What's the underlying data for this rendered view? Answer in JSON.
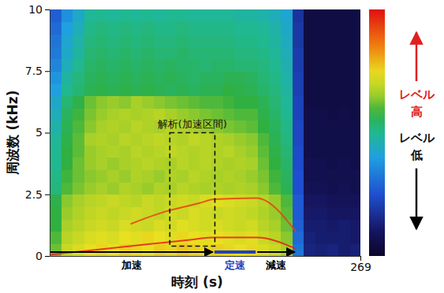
{
  "chart_data": {
    "type": "heatmap",
    "xlabel": "時刻 (s)",
    "ylabel": "周波数 (kHz)",
    "xlim": [
      0,
      269
    ],
    "ylim": [
      0,
      10
    ],
    "xticks": [
      269
    ],
    "yticks": [
      0,
      2.5,
      5,
      7.5,
      10
    ],
    "x_bins": [
      0,
      10,
      20,
      30,
      40,
      50,
      60,
      70,
      80,
      90,
      100,
      110,
      120,
      130,
      140,
      150,
      160,
      170,
      180,
      190,
      200,
      210,
      220,
      230,
      240,
      250,
      260,
      269
    ],
    "y_bins": [
      0,
      0.5,
      1,
      1.5,
      2,
      2.5,
      3,
      3.5,
      4,
      4.5,
      5,
      5.5,
      6,
      6.5,
      7,
      7.5,
      8,
      8.5,
      9,
      9.5,
      10
    ],
    "z": [
      [
        62,
        70,
        72,
        74,
        75,
        74,
        76,
        75,
        74,
        76,
        75,
        77,
        76,
        75,
        76,
        75,
        74,
        75,
        72,
        70,
        66,
        32,
        14,
        13,
        14,
        12,
        13
      ],
      [
        60,
        68,
        70,
        72,
        73,
        72,
        74,
        73,
        75,
        74,
        73,
        75,
        74,
        73,
        74,
        73,
        72,
        73,
        70,
        68,
        64,
        30,
        13,
        12,
        12,
        12,
        11
      ],
      [
        58,
        66,
        68,
        70,
        71,
        70,
        72,
        71,
        70,
        72,
        71,
        73,
        72,
        71,
        72,
        71,
        70,
        71,
        68,
        66,
        62,
        28,
        12,
        12,
        11,
        12,
        11
      ],
      [
        58,
        65,
        67,
        69,
        70,
        69,
        70,
        71,
        70,
        69,
        71,
        70,
        72,
        71,
        70,
        71,
        70,
        69,
        67,
        65,
        61,
        27,
        11,
        11,
        10,
        10,
        10
      ],
      [
        57,
        64,
        66,
        68,
        69,
        70,
        69,
        68,
        70,
        69,
        70,
        71,
        70,
        72,
        73,
        72,
        71,
        70,
        68,
        65,
        60,
        27,
        10,
        10,
        9,
        9,
        9
      ],
      [
        52,
        60,
        63,
        65,
        66,
        65,
        67,
        66,
        65,
        67,
        66,
        68,
        67,
        66,
        67,
        66,
        67,
        66,
        64,
        60,
        56,
        25,
        8,
        8,
        7,
        8,
        7
      ],
      [
        51,
        59,
        62,
        64,
        65,
        66,
        65,
        67,
        66,
        65,
        67,
        66,
        68,
        67,
        66,
        67,
        66,
        65,
        63,
        59,
        55,
        25,
        7,
        7,
        7,
        7,
        7
      ],
      [
        50,
        58,
        62,
        65,
        66,
        65,
        66,
        67,
        68,
        67,
        66,
        68,
        67,
        68,
        67,
        66,
        67,
        66,
        62,
        58,
        54,
        24,
        7,
        7,
        6,
        7,
        6
      ],
      [
        50,
        58,
        61,
        65,
        66,
        67,
        66,
        68,
        67,
        68,
        69,
        68,
        67,
        68,
        67,
        68,
        66,
        65,
        61,
        57,
        53,
        24,
        6,
        6,
        6,
        6,
        6
      ],
      [
        49,
        57,
        61,
        66,
        67,
        66,
        68,
        67,
        68,
        69,
        68,
        67,
        69,
        68,
        67,
        66,
        65,
        64,
        60,
        56,
        52,
        23,
        6,
        6,
        6,
        6,
        6
      ],
      [
        47,
        56,
        60,
        64,
        66,
        67,
        66,
        68,
        67,
        66,
        68,
        67,
        66,
        65,
        64,
        63,
        62,
        61,
        58,
        55,
        51,
        23,
        6,
        6,
        6,
        6,
        6
      ],
      [
        45,
        55,
        59,
        63,
        65,
        66,
        67,
        66,
        67,
        68,
        66,
        65,
        64,
        63,
        62,
        61,
        60,
        60,
        57,
        54,
        50,
        22,
        6,
        6,
        5,
        6,
        5
      ],
      [
        43,
        53,
        57,
        62,
        64,
        65,
        64,
        66,
        65,
        64,
        63,
        62,
        61,
        60,
        60,
        59,
        58,
        58,
        56,
        53,
        49,
        22,
        5,
        5,
        5,
        5,
        5
      ],
      [
        40,
        50,
        53,
        56,
        57,
        56,
        57,
        56,
        57,
        56,
        55,
        56,
        55,
        56,
        56,
        58,
        57,
        56,
        54,
        52,
        48,
        21,
        5,
        5,
        5,
        5,
        5
      ],
      [
        38,
        48,
        52,
        55,
        56,
        55,
        56,
        55,
        56,
        55,
        56,
        55,
        54,
        55,
        55,
        56,
        56,
        55,
        53,
        51,
        47,
        21,
        5,
        5,
        5,
        5,
        5
      ],
      [
        35,
        45,
        50,
        54,
        55,
        54,
        55,
        54,
        55,
        54,
        55,
        54,
        54,
        53,
        54,
        54,
        53,
        53,
        52,
        50,
        46,
        20,
        5,
        5,
        5,
        5,
        5
      ],
      [
        33,
        43,
        48,
        53,
        54,
        53,
        54,
        53,
        54,
        53,
        53,
        54,
        53,
        53,
        53,
        53,
        52,
        52,
        51,
        49,
        45,
        20,
        5,
        5,
        5,
        5,
        5
      ],
      [
        32,
        42,
        47,
        52,
        53,
        52,
        53,
        52,
        53,
        52,
        52,
        53,
        52,
        52,
        52,
        52,
        51,
        51,
        50,
        48,
        44,
        19,
        5,
        5,
        5,
        5,
        5
      ],
      [
        30,
        40,
        45,
        51,
        52,
        51,
        52,
        51,
        52,
        51,
        51,
        52,
        51,
        51,
        51,
        51,
        50,
        50,
        49,
        47,
        43,
        19,
        5,
        5,
        5,
        5,
        5
      ],
      [
        28,
        37,
        43,
        49,
        50,
        49,
        50,
        49,
        50,
        49,
        50,
        50,
        49,
        49,
        49,
        49,
        48,
        48,
        47,
        45,
        42,
        18,
        5,
        5,
        5,
        5,
        5
      ]
    ],
    "zlim": [
      0,
      100
    ],
    "colorbar_labels": {
      "high": "レベル高",
      "low": "レベル低"
    },
    "series": [
      {
        "type": "line",
        "color": "#e8201a",
        "x": [
          0,
          30,
          60,
          90,
          120,
          142,
          179,
          213
        ],
        "values": [
          0.05,
          0.2,
          0.35,
          0.5,
          0.65,
          0.75,
          0.75,
          0.3
        ]
      },
      {
        "type": "line",
        "color": "#e84010",
        "x": [
          70,
          100,
          130,
          142,
          179,
          213
        ],
        "values": [
          1.3,
          1.8,
          2.15,
          2.3,
          2.35,
          1.0
        ]
      }
    ],
    "annotations": [
      {
        "text": "解析(加速区間)",
        "x": [
          104,
          143
        ],
        "y": [
          0.4,
          5
        ]
      }
    ],
    "phases": [
      {
        "label": "加速",
        "x": [
          0,
          142
        ],
        "color": "#000000"
      },
      {
        "label": "定速",
        "x": [
          142,
          179
        ],
        "color": "#2040c0"
      },
      {
        "label": "減速",
        "x": [
          179,
          213
        ],
        "color": "#000000"
      }
    ]
  }
}
